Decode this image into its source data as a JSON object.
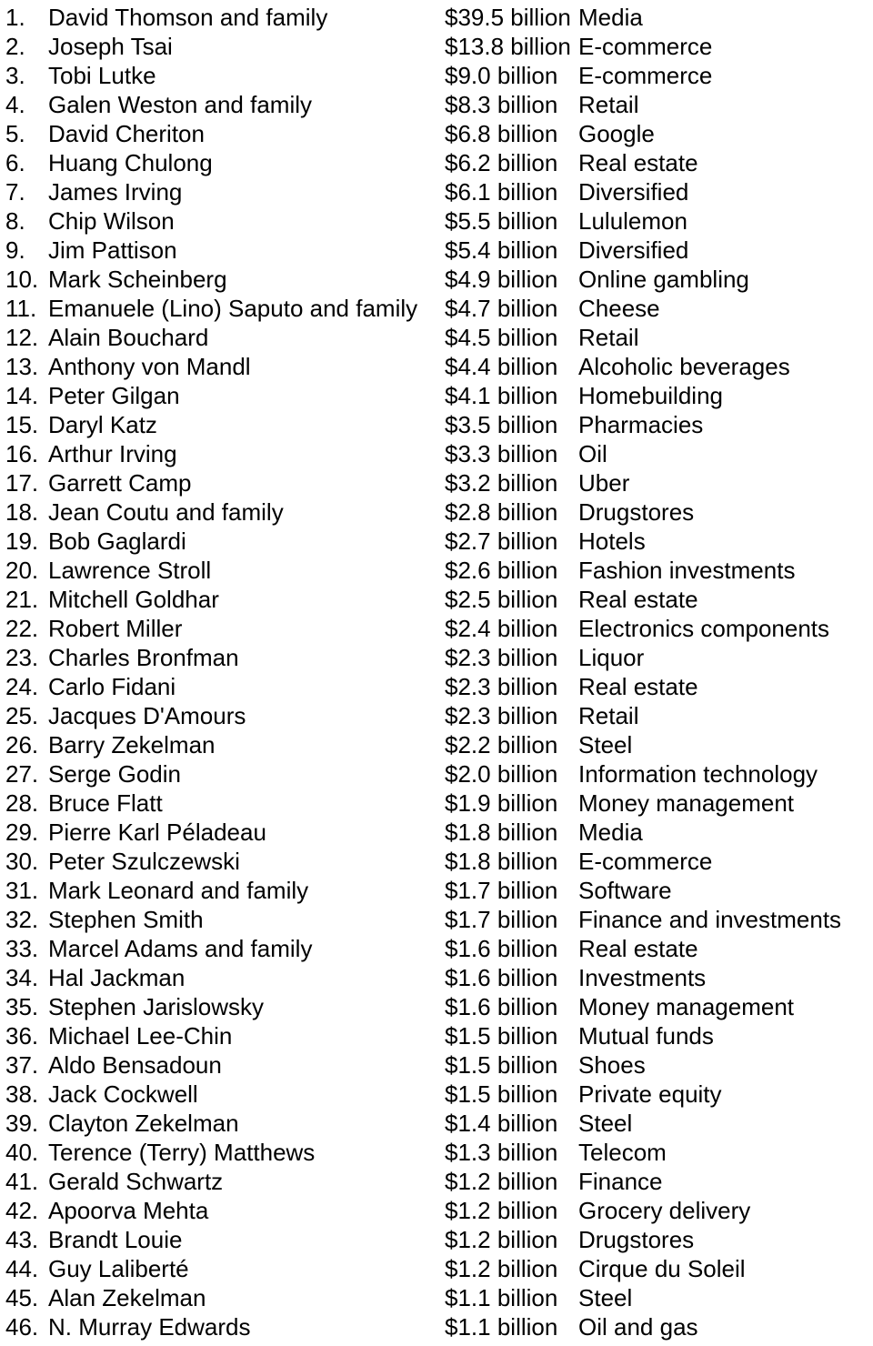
{
  "list": {
    "rows": [
      {
        "rank": "1.",
        "name": "David Thomson and family",
        "worth": "$39.5 billion",
        "industry": "Media"
      },
      {
        "rank": "2.",
        "name": "Joseph Tsai",
        "worth": "$13.8 billion",
        "industry": "E-commerce"
      },
      {
        "rank": "3.",
        "name": "Tobi Lutke",
        "worth": "$9.0 billion",
        "industry": "E-commerce"
      },
      {
        "rank": "4.",
        "name": "Galen Weston and family",
        "worth": "$8.3 billion",
        "industry": "Retail"
      },
      {
        "rank": "5.",
        "name": "David Cheriton",
        "worth": "$6.8 billion",
        "industry": "Google"
      },
      {
        "rank": "6.",
        "name": "Huang Chulong",
        "worth": "$6.2 billion",
        "industry": "Real estate"
      },
      {
        "rank": "7.",
        "name": "James Irving",
        "worth": "$6.1 billion",
        "industry": "Diversified"
      },
      {
        "rank": "8.",
        "name": "Chip Wilson",
        "worth": "$5.5 billion",
        "industry": "Lululemon"
      },
      {
        "rank": "9.",
        "name": "Jim Pattison",
        "worth": "$5.4 billion",
        "industry": "Diversified"
      },
      {
        "rank": "10.",
        "name": "Mark Scheinberg",
        "worth": "$4.9 billion",
        "industry": "Online gambling"
      },
      {
        "rank": "11.",
        "name": "Emanuele (Lino) Saputo and family",
        "worth": "$4.7 billion",
        "industry": "Cheese"
      },
      {
        "rank": "12.",
        "name": "Alain Bouchard",
        "worth": "$4.5 billion",
        "industry": "Retail"
      },
      {
        "rank": "13.",
        "name": "Anthony von Mandl",
        "worth": "$4.4 billion",
        "industry": "Alcoholic beverages"
      },
      {
        "rank": "14.",
        "name": "Peter Gilgan",
        "worth": "$4.1 billion",
        "industry": "Homebuilding"
      },
      {
        "rank": "15.",
        "name": "Daryl Katz",
        "worth": "$3.5 billion",
        "industry": "Pharmacies"
      },
      {
        "rank": "16.",
        "name": "Arthur Irving",
        "worth": "$3.3 billion",
        "industry": "Oil"
      },
      {
        "rank": "17.",
        "name": "Garrett Camp",
        "worth": "$3.2 billion",
        "industry": "Uber"
      },
      {
        "rank": "18.",
        "name": "Jean Coutu and family",
        "worth": "$2.8 billion",
        "industry": "Drugstores"
      },
      {
        "rank": "19.",
        "name": "Bob Gaglardi",
        "worth": "$2.7 billion",
        "industry": "Hotels"
      },
      {
        "rank": "20.",
        "name": "Lawrence Stroll",
        "worth": "$2.6 billion",
        "industry": "Fashion investments"
      },
      {
        "rank": "21.",
        "name": "Mitchell Goldhar",
        "worth": "$2.5 billion",
        "industry": "Real estate"
      },
      {
        "rank": "22.",
        "name": "Robert Miller",
        "worth": "$2.4 billion",
        "industry": "Electronics components"
      },
      {
        "rank": "23.",
        "name": "Charles Bronfman",
        "worth": "$2.3 billion",
        "industry": "Liquor"
      },
      {
        "rank": "24.",
        "name": "Carlo Fidani",
        "worth": "$2.3 billion",
        "industry": "Real estate"
      },
      {
        "rank": "25.",
        "name": "Jacques D'Amours",
        "worth": "$2.3 billion",
        "industry": "Retail"
      },
      {
        "rank": "26.",
        "name": "Barry Zekelman",
        "worth": "$2.2 billion",
        "industry": "Steel"
      },
      {
        "rank": "27.",
        "name": "Serge Godin",
        "worth": "$2.0 billion",
        "industry": "Information technology"
      },
      {
        "rank": "28.",
        "name": "Bruce Flatt",
        "worth": "$1.9 billion",
        "industry": "Money management"
      },
      {
        "rank": "29.",
        "name": "Pierre Karl Péladeau",
        "worth": "$1.8 billion",
        "industry": "Media"
      },
      {
        "rank": "30.",
        "name": "Peter Szulczewski",
        "worth": "$1.8 billion",
        "industry": "E-commerce"
      },
      {
        "rank": "31.",
        "name": "Mark Leonard and family",
        "worth": "$1.7 billion",
        "industry": "Software"
      },
      {
        "rank": "32.",
        "name": "Stephen Smith",
        "worth": "$1.7 billion",
        "industry": "Finance and investments"
      },
      {
        "rank": "33.",
        "name": "Marcel Adams and family",
        "worth": "$1.6 billion",
        "industry": "Real estate"
      },
      {
        "rank": "34.",
        "name": "Hal Jackman",
        "worth": "$1.6 billion",
        "industry": "Investments"
      },
      {
        "rank": "35.",
        "name": "Stephen Jarislowsky",
        "worth": "$1.6 billion",
        "industry": "Money management"
      },
      {
        "rank": "36.",
        "name": "Michael Lee-Chin",
        "worth": "$1.5 billion",
        "industry": "Mutual funds"
      },
      {
        "rank": "37.",
        "name": "Aldo Bensadoun",
        "worth": "$1.5 billion",
        "industry": "Shoes"
      },
      {
        "rank": "38.",
        "name": "Jack Cockwell",
        "worth": "$1.5 billion",
        "industry": "Private equity"
      },
      {
        "rank": "39.",
        "name": "Clayton Zekelman",
        "worth": "$1.4 billion",
        "industry": "Steel"
      },
      {
        "rank": "40.",
        "name": "Terence (Terry) Matthews",
        "worth": "$1.3 billion",
        "industry": "Telecom"
      },
      {
        "rank": "41.",
        "name": "Gerald Schwartz",
        "worth": "$1.2 billion",
        "industry": "Finance"
      },
      {
        "rank": "42.",
        "name": "Apoorva Mehta",
        "worth": "$1.2 billion",
        "industry": "Grocery delivery"
      },
      {
        "rank": "43.",
        "name": "Brandt Louie",
        "worth": "$1.2 billion",
        "industry": "Drugstores"
      },
      {
        "rank": "44.",
        "name": "Guy Laliberté",
        "worth": "$1.2 billion",
        "industry": "Cirque du Soleil"
      },
      {
        "rank": "45.",
        "name": "Alan Zekelman",
        "worth": "$1.1 billion",
        "industry": "Steel"
      },
      {
        "rank": "46.",
        "name": "N. Murray Edwards",
        "worth": "$1.1 billion",
        "industry": "Oil and gas"
      }
    ]
  }
}
